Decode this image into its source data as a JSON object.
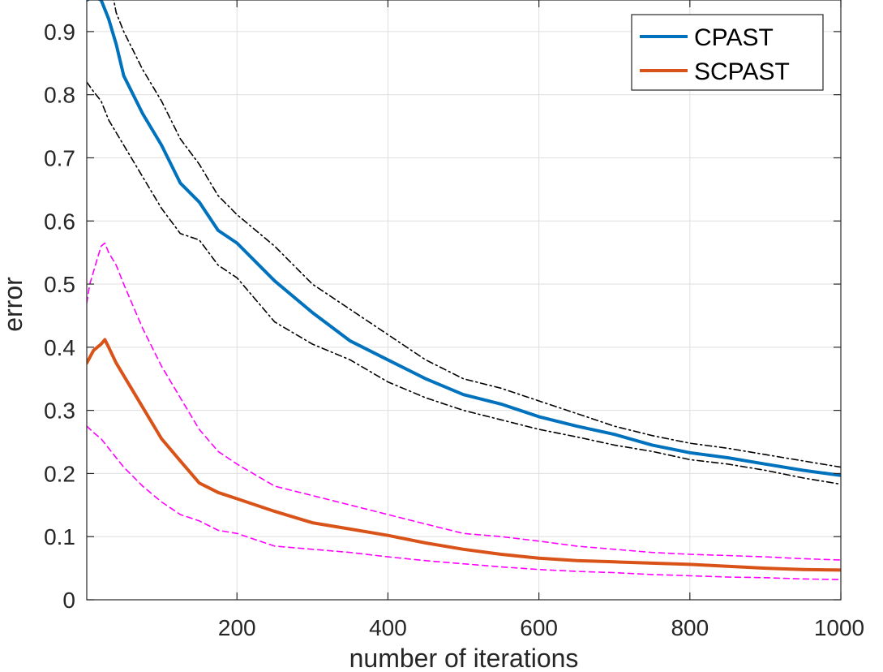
{
  "chart_data": {
    "type": "line",
    "title": "",
    "xlabel": "number of iterations",
    "ylabel": "error",
    "xlim": [
      1,
      1000
    ],
    "ylim": [
      0,
      0.95
    ],
    "xticks": [
      200,
      400,
      600,
      800,
      1000
    ],
    "xtick_labels": [
      "200",
      "400",
      "600",
      "800",
      "1000"
    ],
    "yticks": [
      0,
      0.1,
      0.2,
      0.3,
      0.4,
      0.5,
      0.6,
      0.7,
      0.8,
      0.9
    ],
    "ytick_labels": [
      "0",
      "0.1",
      "0.2",
      "0.3",
      "0.4",
      "0.5",
      "0.6",
      "0.7",
      "0.8",
      "0.9"
    ],
    "grid": true,
    "legend": {
      "position": "top-right",
      "entries": [
        "CPAST",
        "SCPAST"
      ]
    },
    "series": [
      {
        "name": "CPAST",
        "style": "solid",
        "color": "#0072BD",
        "in_legend": true,
        "x": [
          1,
          10,
          20,
          30,
          40,
          50,
          75,
          100,
          125,
          150,
          175,
          200,
          250,
          300,
          350,
          400,
          450,
          500,
          550,
          600,
          650,
          700,
          750,
          800,
          850,
          900,
          950,
          1000
        ],
        "y": [
          0.95,
          0.955,
          0.95,
          0.92,
          0.88,
          0.83,
          0.77,
          0.72,
          0.66,
          0.63,
          0.585,
          0.565,
          0.505,
          0.455,
          0.41,
          0.38,
          0.35,
          0.325,
          0.31,
          0.29,
          0.275,
          0.262,
          0.245,
          0.233,
          0.225,
          0.215,
          0.205,
          0.197
        ]
      },
      {
        "name": "CPAST upper bound",
        "style": "dashdot",
        "color": "#000000",
        "in_legend": false,
        "x": [
          35,
          40,
          50,
          75,
          100,
          125,
          150,
          175,
          200,
          250,
          300,
          350,
          400,
          450,
          500,
          550,
          600,
          650,
          700,
          750,
          800,
          850,
          900,
          950,
          1000
        ],
        "y": [
          0.96,
          0.93,
          0.9,
          0.84,
          0.79,
          0.73,
          0.69,
          0.64,
          0.61,
          0.56,
          0.5,
          0.46,
          0.42,
          0.38,
          0.35,
          0.335,
          0.315,
          0.295,
          0.275,
          0.26,
          0.248,
          0.24,
          0.23,
          0.22,
          0.21
        ]
      },
      {
        "name": "CPAST lower bound",
        "style": "dashdot",
        "color": "#000000",
        "in_legend": false,
        "x": [
          1,
          10,
          20,
          30,
          50,
          75,
          100,
          125,
          150,
          175,
          200,
          250,
          300,
          350,
          400,
          450,
          500,
          550,
          600,
          650,
          700,
          750,
          800,
          850,
          900,
          950,
          1000
        ],
        "y": [
          0.82,
          0.805,
          0.79,
          0.76,
          0.72,
          0.67,
          0.62,
          0.58,
          0.57,
          0.53,
          0.51,
          0.44,
          0.405,
          0.38,
          0.345,
          0.32,
          0.3,
          0.285,
          0.27,
          0.258,
          0.245,
          0.235,
          0.222,
          0.215,
          0.205,
          0.193,
          0.183
        ]
      },
      {
        "name": "SCPAST",
        "style": "solid",
        "color": "#D95319",
        "in_legend": true,
        "x": [
          1,
          10,
          20,
          25,
          30,
          40,
          50,
          75,
          100,
          125,
          150,
          175,
          200,
          250,
          300,
          350,
          400,
          450,
          500,
          550,
          600,
          650,
          700,
          750,
          800,
          850,
          900,
          950,
          1000
        ],
        "y": [
          0.375,
          0.395,
          0.405,
          0.412,
          0.4,
          0.375,
          0.355,
          0.305,
          0.255,
          0.22,
          0.185,
          0.17,
          0.16,
          0.14,
          0.122,
          0.112,
          0.102,
          0.09,
          0.08,
          0.072,
          0.066,
          0.062,
          0.06,
          0.058,
          0.056,
          0.053,
          0.05,
          0.048,
          0.047
        ]
      },
      {
        "name": "SCPAST upper bound",
        "style": "dashed",
        "color": "#FF00FF",
        "in_legend": false,
        "x": [
          1,
          5,
          10,
          15,
          20,
          25,
          30,
          40,
          50,
          75,
          100,
          125,
          150,
          175,
          200,
          250,
          300,
          350,
          400,
          450,
          500,
          550,
          600,
          650,
          700,
          750,
          800,
          850,
          900,
          950,
          1000
        ],
        "y": [
          0.47,
          0.5,
          0.52,
          0.54,
          0.56,
          0.565,
          0.55,
          0.53,
          0.5,
          0.43,
          0.37,
          0.32,
          0.27,
          0.235,
          0.215,
          0.18,
          0.165,
          0.15,
          0.135,
          0.12,
          0.105,
          0.1,
          0.093,
          0.085,
          0.08,
          0.075,
          0.072,
          0.07,
          0.068,
          0.065,
          0.063
        ]
      },
      {
        "name": "SCPAST lower bound",
        "style": "dashed",
        "color": "#FF00FF",
        "in_legend": false,
        "x": [
          1,
          10,
          20,
          30,
          40,
          50,
          75,
          100,
          125,
          150,
          175,
          200,
          250,
          300,
          350,
          400,
          450,
          500,
          550,
          600,
          650,
          700,
          750,
          800,
          850,
          900,
          950,
          1000
        ],
        "y": [
          0.275,
          0.265,
          0.255,
          0.24,
          0.225,
          0.21,
          0.18,
          0.155,
          0.135,
          0.125,
          0.11,
          0.105,
          0.085,
          0.08,
          0.075,
          0.068,
          0.062,
          0.057,
          0.052,
          0.048,
          0.045,
          0.043,
          0.04,
          0.038,
          0.036,
          0.035,
          0.033,
          0.032
        ]
      }
    ]
  }
}
